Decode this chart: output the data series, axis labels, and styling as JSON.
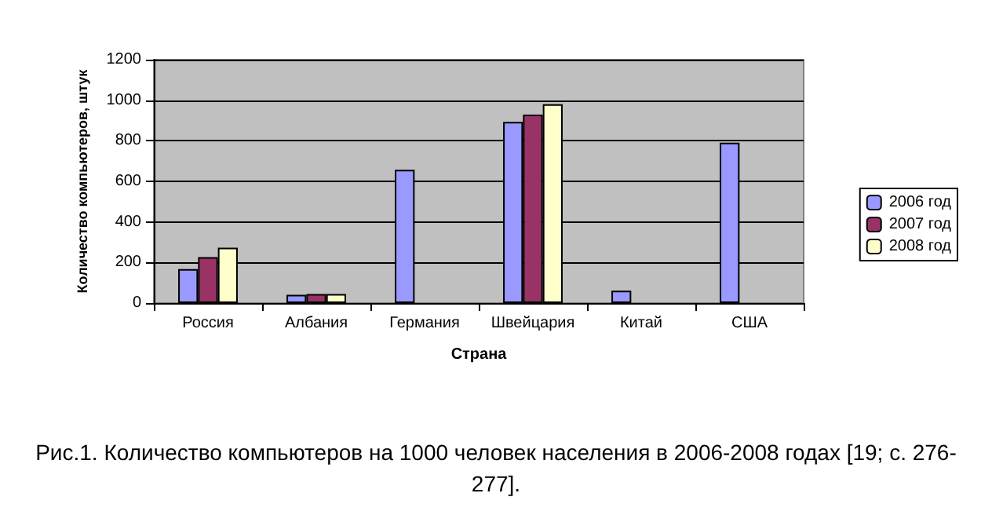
{
  "chart_data": {
    "type": "bar",
    "xlabel": "Страна",
    "ylabel": "Количество компьютеров, штук",
    "categories": [
      "Россия",
      "Албания",
      "Германия",
      "Швейцария",
      "Китай",
      "США"
    ],
    "series": [
      {
        "name": "2006 год",
        "color": "#9999ff",
        "values": [
          167,
          41,
          657,
          893,
          61,
          791
        ]
      },
      {
        "name": "2007 год",
        "color": "#993366",
        "values": [
          226,
          45,
          null,
          929,
          null,
          null
        ]
      },
      {
        "name": "2008 год",
        "color": "#ffffcc",
        "values": [
          273,
          45,
          null,
          980,
          null,
          null
        ]
      }
    ],
    "ylim": [
      0,
      1200
    ],
    "yticks": [
      0,
      200,
      400,
      600,
      800,
      1000,
      1200
    ],
    "grid": "y",
    "legend": "right",
    "annotations": [
      "Рис.1. Количество компьютеров на 1000 человек населения в 2006-2008 годах [19; с. 276-277]."
    ]
  }
}
